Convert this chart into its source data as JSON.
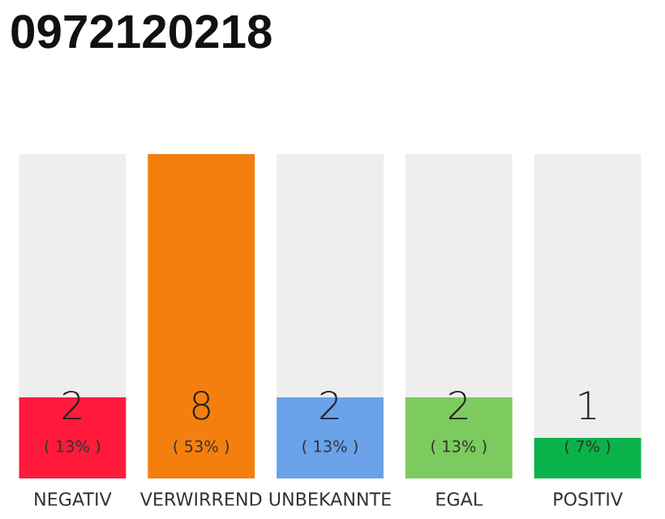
{
  "chart_data": {
    "type": "bar",
    "title": "0972120218",
    "categories": [
      "NEGATIV",
      "VERWIRREND",
      "UNBEKANNTE",
      "EGAL",
      "POSITIV"
    ],
    "values": [
      2,
      8,
      2,
      2,
      1
    ],
    "colors": [
      "#ff1a3c",
      "#f57f0e",
      "#6aa2ea",
      "#7ccb5e",
      "#0ab34a"
    ],
    "ylim": [
      0,
      8
    ],
    "data_labels": true,
    "tick_labels": "x",
    "grid": false,
    "annotations": [
      "( 13% )",
      "( 53% )",
      "( 13% )",
      "( 13% )",
      "( 7% )"
    ]
  }
}
